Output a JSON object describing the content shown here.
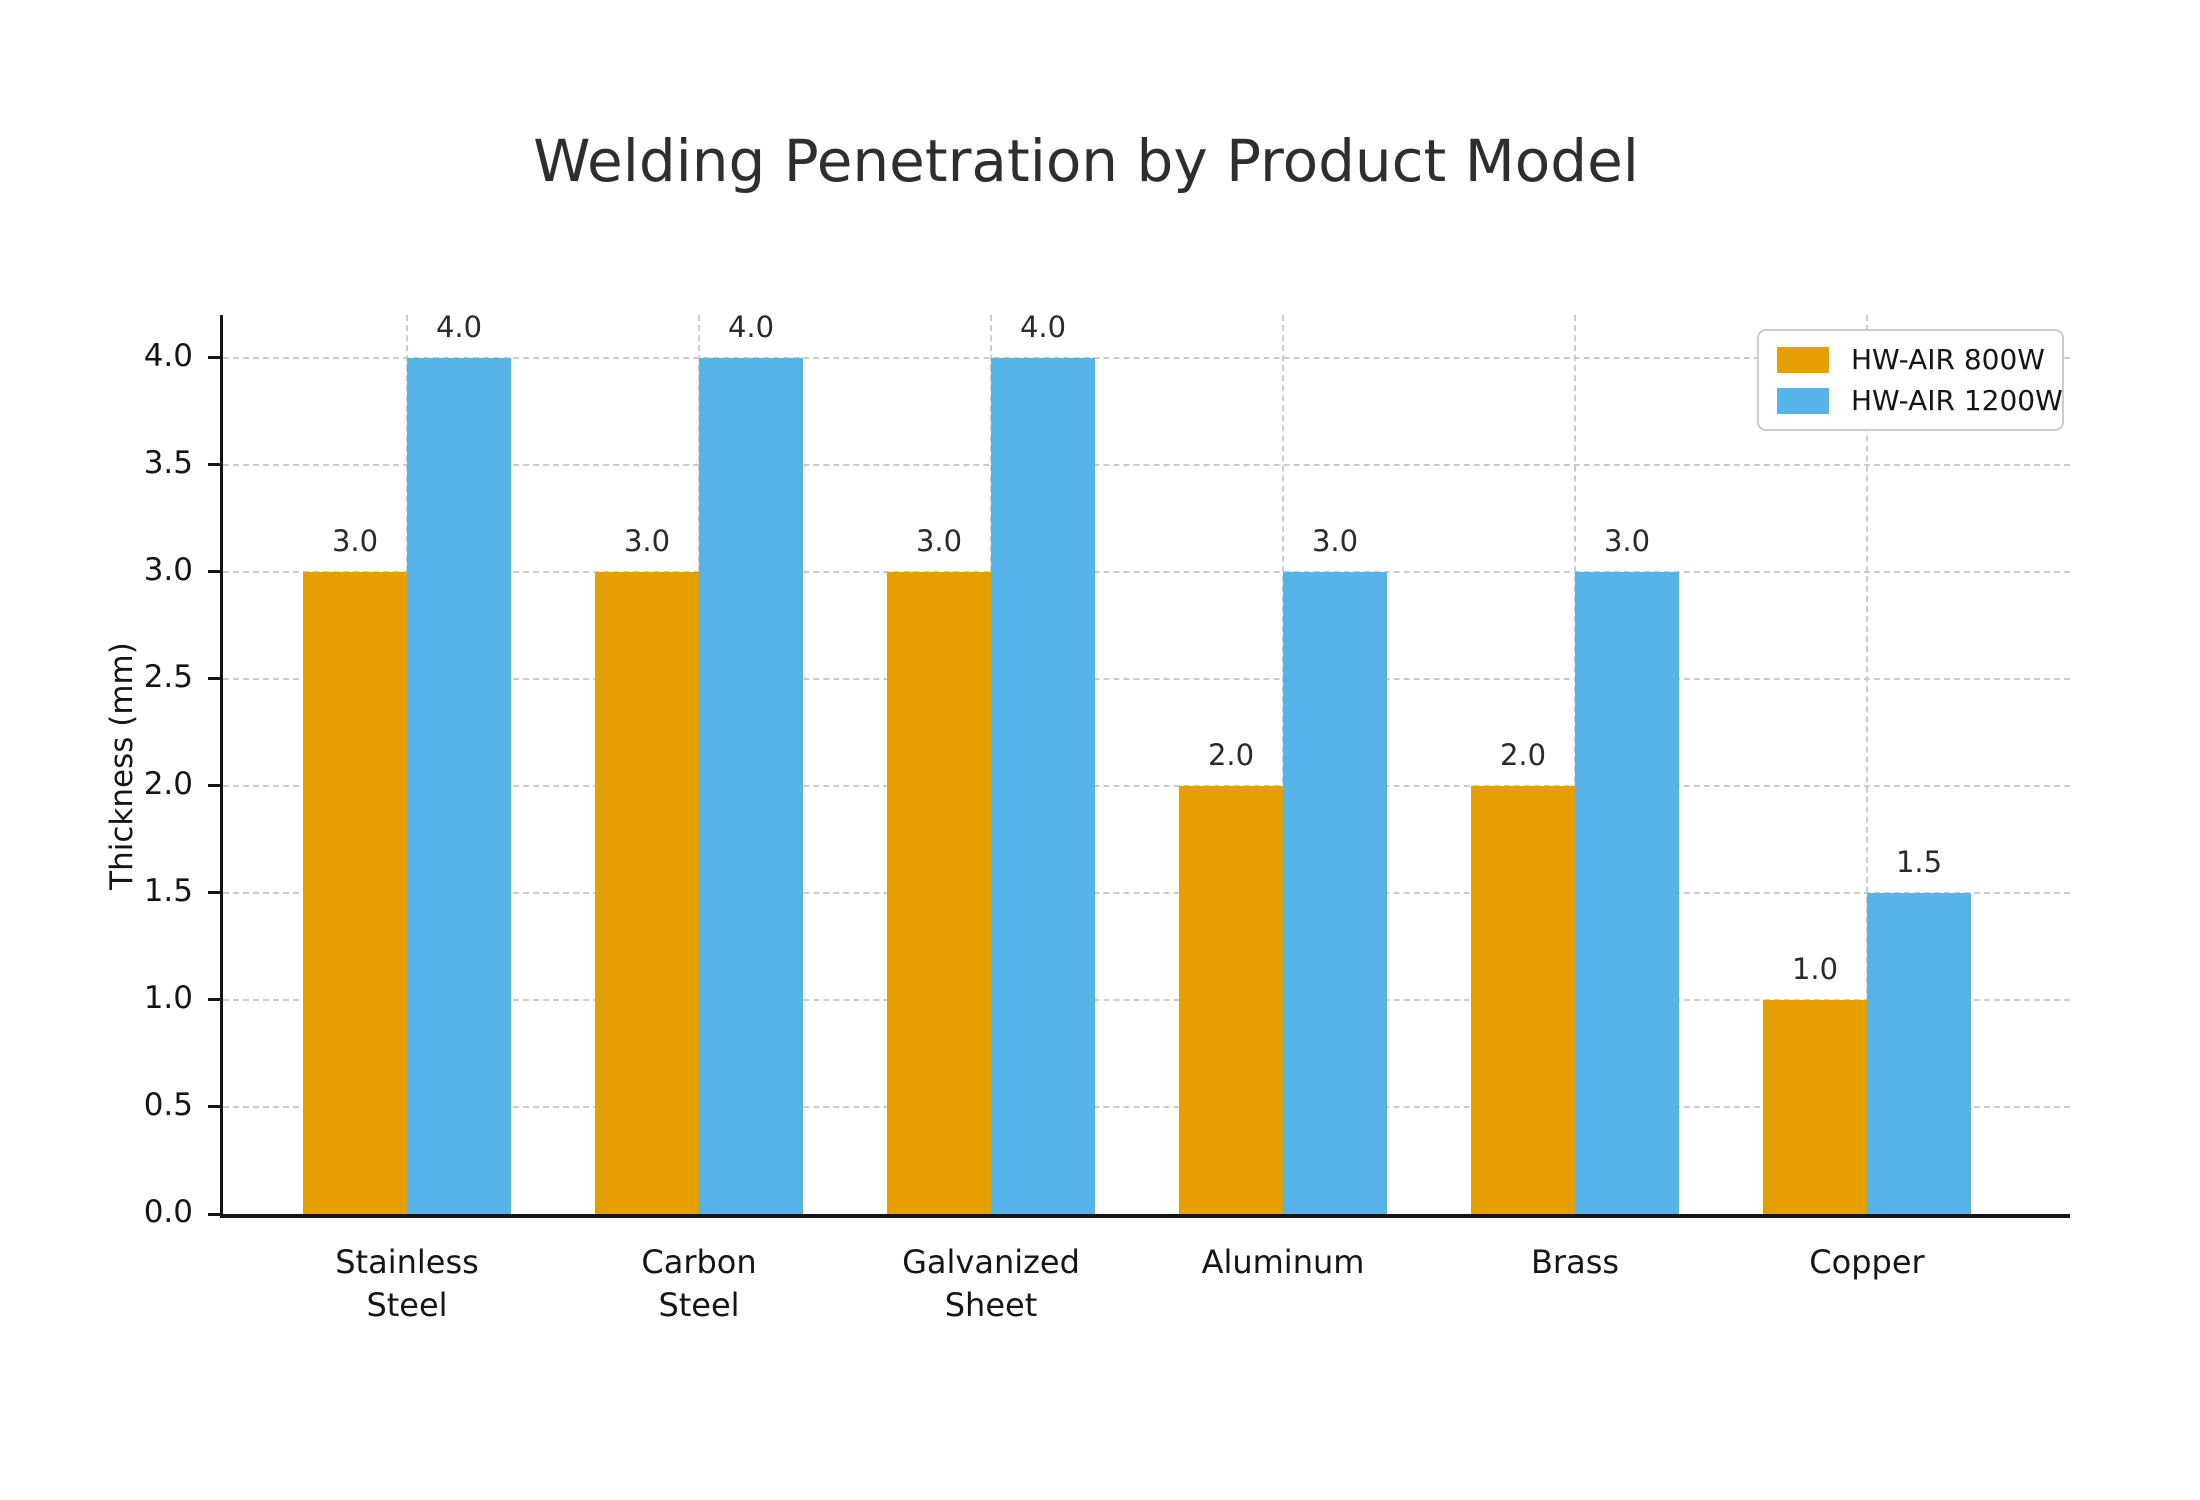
{
  "title": "Welding Penetration by Product Model",
  "chart_data": {
    "type": "bar",
    "title": "Welding Penetration by Product Model",
    "categories": [
      "Stainless\nSteel",
      "Carbon\nSteel",
      "Galvanized\nSheet",
      "Aluminum",
      "Brass",
      "Copper"
    ],
    "series": [
      {
        "name": "HW-AIR 800W",
        "color": "#E69F00",
        "values": [
          3.0,
          3.0,
          3.0,
          2.0,
          2.0,
          1.0
        ]
      },
      {
        "name": "HW-AIR 1200W",
        "color": "#56B4E9",
        "values": [
          4.0,
          4.0,
          4.0,
          3.0,
          3.0,
          1.5
        ]
      }
    ],
    "bar_value_labels": [
      [
        "3.0",
        "3.0",
        "3.0",
        "2.0",
        "2.0",
        "1.0"
      ],
      [
        "4.0",
        "4.0",
        "4.0",
        "3.0",
        "3.0",
        "1.5"
      ]
    ],
    "xlabel": "",
    "ylabel": "Thickness (mm)",
    "ylim": [
      0,
      4.2
    ],
    "yticks": [
      0.0,
      0.5,
      1.0,
      1.5,
      2.0,
      2.5,
      3.0,
      3.5,
      4.0
    ],
    "ytick_labels": [
      "0.0",
      "0.5",
      "1.0",
      "1.5",
      "2.0",
      "2.5",
      "3.0",
      "3.5",
      "4.0"
    ],
    "grid": true,
    "grid_style": "dashed",
    "legend_position": "upper right"
  },
  "colors": {
    "series_800w": "#E69F00",
    "series_1200w": "#56B4E9",
    "gridline": "#CBCBCB",
    "spine": "#151515",
    "title_text": "#2E2E2E",
    "label_text": "#151515",
    "legend_border": "#CCCCCC",
    "background": "#FFFFFF"
  }
}
